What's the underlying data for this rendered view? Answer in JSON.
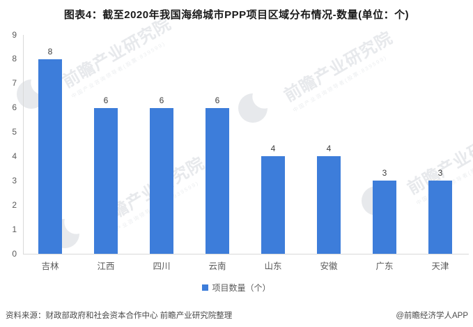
{
  "title": "图表4：截至2020年我国海绵城市PPP项目区域分布情况-数量(单位：个)",
  "chart_data": {
    "type": "bar",
    "title": "截至2020年我国海绵城市PPP项目区域分布情况-数量(单位：个)",
    "categories": [
      "吉林",
      "江西",
      "四川",
      "云南",
      "山东",
      "安徽",
      "广东",
      "天津"
    ],
    "values": [
      8,
      6,
      6,
      6,
      4,
      4,
      3,
      3
    ],
    "series_name": "项目数量（个）",
    "xlabel": "",
    "ylabel": "",
    "ylim": [
      0,
      9
    ],
    "y_ticks": [
      0,
      1,
      2,
      3,
      4,
      5,
      6,
      7,
      8,
      9
    ],
    "grid": false,
    "value_labels_shown": true,
    "legend_position": "bottom",
    "bar_color": "#3d7dda",
    "axis_line_color": "#d9d9d9"
  },
  "legend": {
    "label": "项目数量（个）",
    "marker_color": "#3d7dda"
  },
  "footer": {
    "source": "资料来源：财政部政府和社会资本合作中心 前瞻产业研究院整理",
    "credit": "@前瞻经济学人APP"
  },
  "watermark": {
    "text": "前瞻产业研究院",
    "subtext": "中国产业咨询领导者(股票:839599)",
    "logo": "qianzhan-logo",
    "color": "#e7e9ec"
  }
}
